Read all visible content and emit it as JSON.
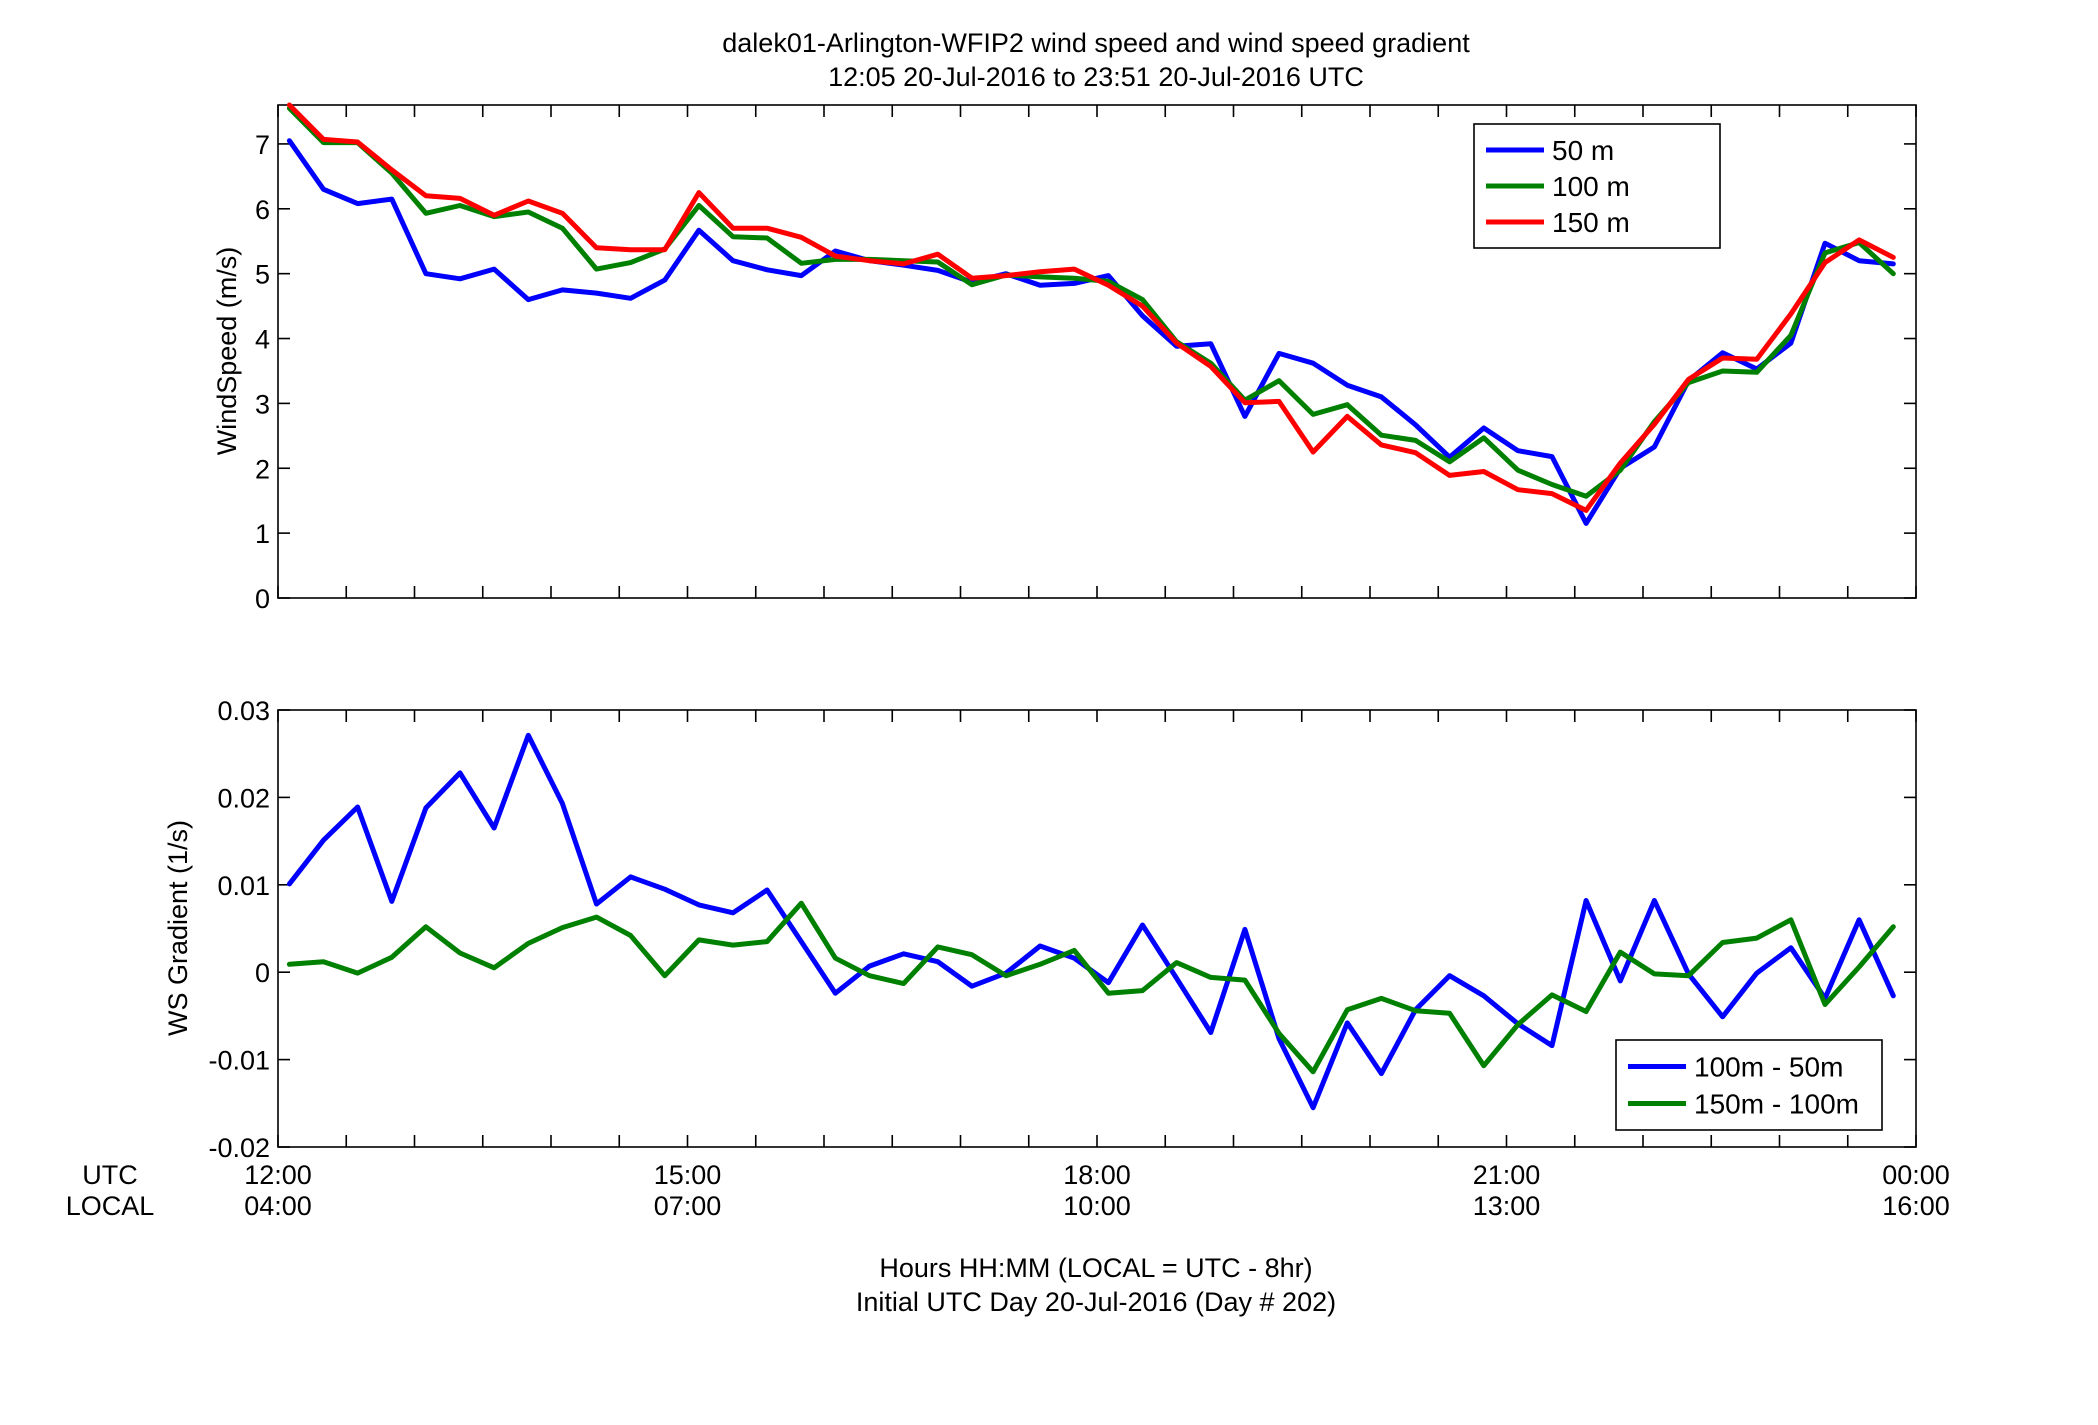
{
  "title_line1": "dalek01-Arlington-WFIP2  wind speed and wind speed gradient",
  "title_line2": "12:05 20-Jul-2016 to 23:51 20-Jul-2016  UTC",
  "xaxis": {
    "utc_label": "UTC",
    "local_label": "LOCAL",
    "utc_ticks": [
      "12:00",
      "15:00",
      "18:00",
      "21:00",
      "00:00"
    ],
    "local_ticks": [
      "04:00",
      "07:00",
      "10:00",
      "13:00",
      "16:00"
    ],
    "caption_line1": "Hours HH:MM  (LOCAL = UTC - 8hr)",
    "caption_line2": "Initial UTC Day 20-Jul-2016 (Day # 202)"
  },
  "colors": {
    "blue": "#0000ff",
    "green": "#008000",
    "red": "#ff0000"
  },
  "chart_data": [
    {
      "type": "line",
      "ylabel": "WindSpeed (m/s)",
      "xlim": [
        "12:00",
        "00:00"
      ],
      "ylim": [
        0,
        7.6
      ],
      "yticks": [
        0,
        1,
        2,
        3,
        4,
        5,
        6,
        7
      ],
      "legend_position": "top-right",
      "x": [
        "12:05",
        "12:20",
        "12:35",
        "12:50",
        "13:05",
        "13:20",
        "13:35",
        "13:50",
        "14:05",
        "14:20",
        "14:35",
        "14:50",
        "15:05",
        "15:20",
        "15:35",
        "15:50",
        "16:05",
        "16:20",
        "16:35",
        "16:50",
        "17:05",
        "17:20",
        "17:35",
        "17:50",
        "18:05",
        "18:20",
        "18:35",
        "18:50",
        "19:05",
        "19:20",
        "19:35",
        "19:50",
        "20:05",
        "20:20",
        "20:35",
        "20:50",
        "21:05",
        "21:20",
        "21:35",
        "21:50",
        "22:05",
        "22:20",
        "22:35",
        "22:50",
        "23:05",
        "23:20",
        "23:35",
        "23:50"
      ],
      "series": [
        {
          "name": "50 m",
          "color": "#0000ff",
          "values": [
            7.05,
            6.3,
            6.08,
            6.15,
            5.0,
            4.92,
            5.07,
            4.6,
            4.75,
            4.7,
            4.62,
            4.9,
            5.67,
            5.2,
            5.06,
            4.97,
            5.35,
            5.2,
            5.13,
            5.05,
            4.87,
            5.0,
            4.82,
            4.85,
            4.97,
            4.35,
            3.88,
            3.92,
            2.8,
            3.77,
            3.62,
            3.28,
            3.1,
            2.67,
            2.17,
            2.62,
            2.27,
            2.18,
            1.15,
            2.0,
            2.33,
            3.35,
            3.78,
            3.53,
            3.93,
            5.47,
            5.2,
            5.15
          ]
        },
        {
          "name": "100 m",
          "color": "#008000",
          "values": [
            7.55,
            7.02,
            7.02,
            6.55,
            5.93,
            6.05,
            5.88,
            5.95,
            5.7,
            5.07,
            5.17,
            5.38,
            6.05,
            5.57,
            5.55,
            5.16,
            5.22,
            5.22,
            5.2,
            5.18,
            4.83,
            4.98,
            4.95,
            4.93,
            4.88,
            4.6,
            3.95,
            3.62,
            3.05,
            3.35,
            2.83,
            2.98,
            2.51,
            2.43,
            2.1,
            2.47,
            1.97,
            1.75,
            1.57,
            1.97,
            2.72,
            3.32,
            3.5,
            3.48,
            4.05,
            5.32,
            5.48,
            5.0
          ]
        },
        {
          "name": "150 m",
          "color": "#ff0000",
          "values": [
            7.62,
            7.07,
            7.03,
            6.6,
            6.2,
            6.16,
            5.9,
            6.12,
            5.93,
            5.4,
            5.37,
            5.37,
            6.25,
            5.7,
            5.7,
            5.56,
            5.27,
            5.2,
            5.15,
            5.3,
            4.93,
            4.97,
            5.03,
            5.07,
            4.82,
            4.5,
            3.93,
            3.57,
            3.01,
            3.03,
            2.25,
            2.8,
            2.36,
            2.24,
            1.89,
            1.95,
            1.67,
            1.61,
            1.35,
            2.08,
            2.68,
            3.37,
            3.7,
            3.68,
            4.38,
            5.17,
            5.52,
            5.25
          ]
        }
      ]
    },
    {
      "type": "line",
      "ylabel": "WS Gradient (1/s)",
      "xlim": [
        "12:00",
        "00:00"
      ],
      "ylim": [
        -0.02,
        0.03
      ],
      "yticks": [
        -0.02,
        -0.01,
        0,
        0.01,
        0.02,
        0.03
      ],
      "ytick_labels": [
        "-0.02",
        "-0.01",
        "0",
        "0.01",
        "0.02",
        "0.03"
      ],
      "legend_position": "bottom-right",
      "x": [
        "12:05",
        "12:20",
        "12:35",
        "12:50",
        "13:05",
        "13:20",
        "13:35",
        "13:50",
        "14:05",
        "14:20",
        "14:35",
        "14:50",
        "15:05",
        "15:20",
        "15:35",
        "15:50",
        "16:05",
        "16:20",
        "16:35",
        "16:50",
        "17:05",
        "17:20",
        "17:35",
        "17:50",
        "18:05",
        "18:20",
        "18:35",
        "18:50",
        "19:05",
        "19:20",
        "19:35",
        "19:50",
        "20:05",
        "20:20",
        "20:35",
        "20:50",
        "21:05",
        "21:20",
        "21:35",
        "21:50",
        "22:05",
        "22:20",
        "22:35",
        "22:50",
        "23:05",
        "23:20",
        "23:35",
        "23:50"
      ],
      "series": [
        {
          "name": "100m - 50m",
          "color": "#0000ff",
          "values": [
            0.0101,
            0.0151,
            0.0189,
            0.0081,
            0.0188,
            0.0228,
            0.0165,
            0.0271,
            0.0193,
            0.0078,
            0.0109,
            0.0095,
            0.0077,
            0.0068,
            0.0094,
            0.0035,
            -0.0024,
            0.0007,
            0.0021,
            0.0012,
            -0.0016,
            -0.0001,
            0.003,
            0.0016,
            -0.0012,
            0.0054,
            -0.0007,
            -0.0069,
            0.0049,
            -0.0076,
            -0.0155,
            -0.0058,
            -0.0116,
            -0.0043,
            -0.0004,
            -0.0027,
            -0.0059,
            -0.0084,
            0.0082,
            -0.001,
            0.0082,
            -0.0002,
            -0.0051,
            -0.0001,
            0.0028,
            -0.003,
            0.006,
            -0.0027
          ]
        },
        {
          "name": "150m - 100m",
          "color": "#008000",
          "values": [
            0.0009,
            0.0012,
            -0.0001,
            0.0017,
            0.0052,
            0.0022,
            0.0005,
            0.0033,
            0.0051,
            0.0063,
            0.0042,
            -0.0004,
            0.0037,
            0.0031,
            0.0035,
            0.0079,
            0.0016,
            -0.0004,
            -0.0013,
            0.0029,
            0.002,
            -0.0004,
            0.0009,
            0.0025,
            -0.0024,
            -0.0021,
            0.0011,
            -0.0006,
            -0.0009,
            -0.007,
            -0.0114,
            -0.0043,
            -0.003,
            -0.0044,
            -0.0047,
            -0.0107,
            -0.006,
            -0.0026,
            -0.0045,
            0.0023,
            -0.0002,
            -0.0004,
            0.0034,
            0.0039,
            0.006,
            -0.0037,
            0.0006,
            0.0052
          ]
        }
      ]
    }
  ]
}
